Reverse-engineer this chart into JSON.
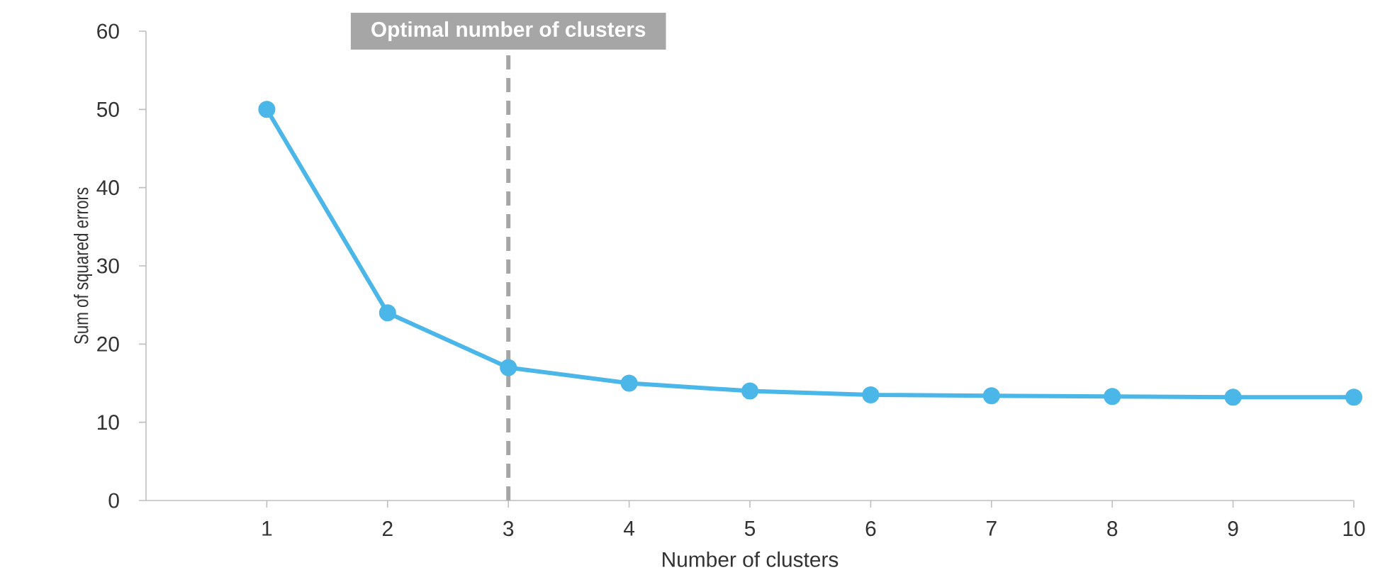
{
  "chart_data": {
    "type": "line",
    "xlabel": "Number of clusters",
    "ylabel": "Sum of squared errors",
    "x": [
      1,
      2,
      3,
      4,
      5,
      6,
      7,
      8,
      9,
      10
    ],
    "series": [
      {
        "color": "#4bb6e8",
        "values": [
          50,
          24,
          17,
          15,
          14,
          13.5,
          13.4,
          13.3,
          13.2,
          13.2
        ]
      }
    ],
    "xlim": [
      0,
      10
    ],
    "xticks": [
      1,
      2,
      3,
      4,
      5,
      6,
      7,
      8,
      9,
      10
    ],
    "ylim": [
      0,
      60
    ],
    "yticks": [
      0,
      10,
      20,
      30,
      40,
      50,
      60
    ],
    "marker": "circle",
    "line_style": "solid",
    "grid": false,
    "ref_lines": [
      {
        "axis": "x",
        "value": 3,
        "label": "Optimal number of clusters",
        "color": "#a6a6a6",
        "line_style": "dashed"
      }
    ]
  }
}
